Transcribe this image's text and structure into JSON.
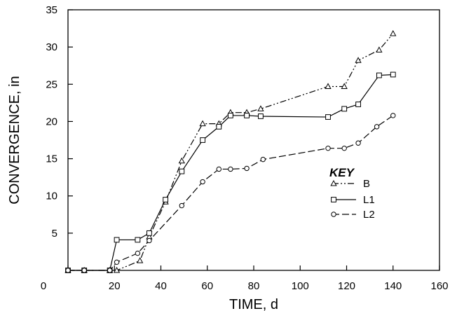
{
  "chart_data": {
    "type": "line",
    "xlabel": "TIME,  d",
    "ylabel": "CONVERGENCE, in",
    "xlim": [
      0,
      160
    ],
    "ylim": [
      0,
      35
    ],
    "x_ticks": [
      0,
      20,
      40,
      60,
      80,
      100,
      120,
      140,
      160
    ],
    "y_ticks": [
      5,
      10,
      15,
      20,
      25,
      30,
      35
    ],
    "origin_label": "0",
    "grid": false,
    "legend": {
      "title": "KEY",
      "placement": "right-middle"
    },
    "series": [
      {
        "name": "B",
        "marker": "triangle",
        "dash": "dash-dot-dot",
        "x": [
          0,
          7,
          18,
          21,
          31,
          35,
          42,
          49,
          58,
          65,
          70,
          77,
          83,
          112,
          119,
          125,
          134,
          140
        ],
        "y": [
          0,
          0,
          0,
          0,
          1.3,
          4.5,
          9.2,
          14.7,
          19.7,
          19.7,
          21.2,
          21.2,
          21.7,
          24.7,
          24.7,
          28.2,
          29.6,
          31.8
        ]
      },
      {
        "name": "L1",
        "marker": "square",
        "dash": "solid",
        "x": [
          0,
          7,
          18,
          21,
          30,
          35,
          42,
          49,
          58,
          65,
          70,
          77,
          83,
          112,
          119,
          125,
          134,
          140
        ],
        "y": [
          0,
          0,
          0,
          4.1,
          4.1,
          5.0,
          9.5,
          13.3,
          17.5,
          19.3,
          20.8,
          20.8,
          20.7,
          20.6,
          21.7,
          22.3,
          26.2,
          26.3
        ]
      },
      {
        "name": "L2",
        "marker": "circle",
        "dash": "long-dash",
        "x": [
          0,
          7,
          18,
          21,
          30,
          35,
          49,
          58,
          65,
          70,
          77,
          84,
          112,
          119,
          125,
          133,
          140
        ],
        "y": [
          0,
          0,
          0,
          1.1,
          2.3,
          4.0,
          8.7,
          11.9,
          13.6,
          13.6,
          13.7,
          14.9,
          16.4,
          16.4,
          17.1,
          19.3,
          20.8
        ]
      }
    ]
  }
}
